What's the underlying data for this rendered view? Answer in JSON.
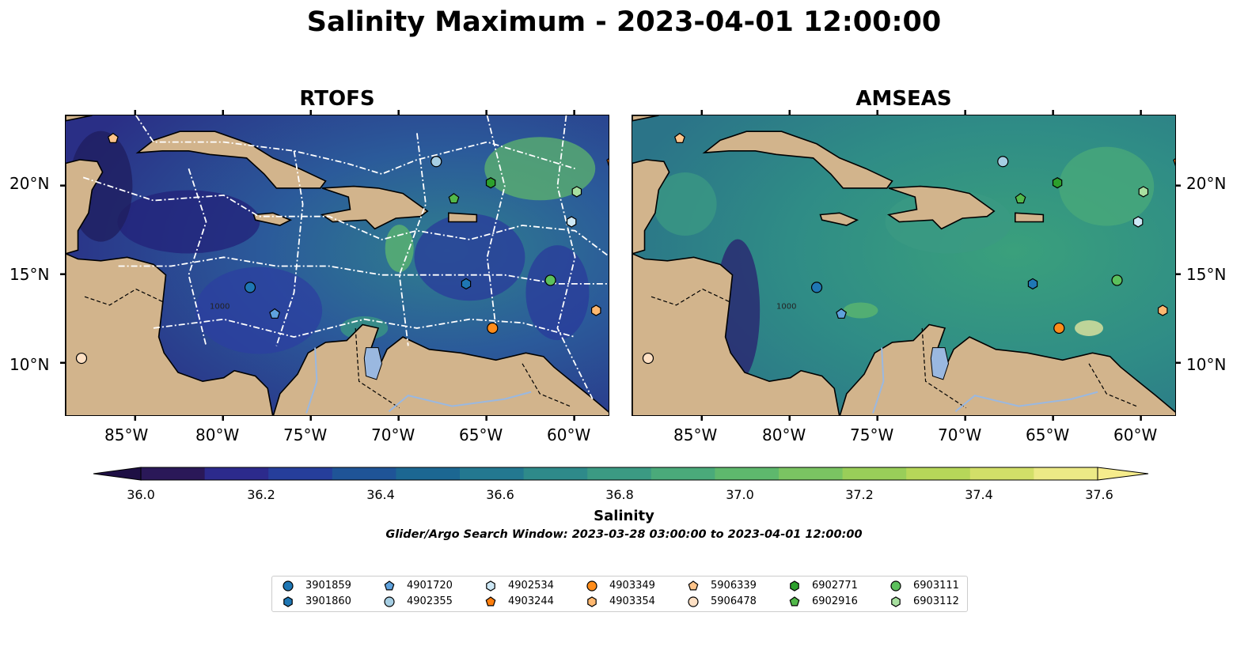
{
  "title": "Salinity Maximum - 2023-04-01 12:00:00",
  "panels": [
    {
      "title": "RTOFS"
    },
    {
      "title": "AMSEAS"
    }
  ],
  "axes": {
    "lon_ticks": [
      "85°W",
      "80°W",
      "75°W",
      "70°W",
      "65°W",
      "60°W"
    ],
    "lat_ticks": [
      "20°N",
      "15°N",
      "10°N"
    ],
    "lon_range": [
      -89,
      -58
    ],
    "lat_range": [
      7,
      24
    ]
  },
  "contour_label": "1000",
  "colorbar": {
    "label": "Salinity",
    "ticks": [
      "36.0",
      "36.2",
      "36.4",
      "36.6",
      "36.8",
      "37.0",
      "37.2",
      "37.4",
      "37.6"
    ],
    "range": [
      36.0,
      37.6
    ],
    "colors": [
      "#2a1858",
      "#2c2a8c",
      "#263e9b",
      "#1f5497",
      "#1c6792",
      "#237890",
      "#2e8a8a",
      "#3b9a83",
      "#4aaa7a",
      "#5eb86d",
      "#7ac462",
      "#99ce59",
      "#b6d759",
      "#d2df68",
      "#ecea86"
    ]
  },
  "search_window": "Glider/Argo Search Window: 2023-03-28 03:00:00 to 2023-04-01 12:00:00",
  "colors": {
    "land": "#d2b48c",
    "lake": "#9ab8e0",
    "ocean_rtofs": "#2f3f98",
    "ocean_amseas": "#2f8a85"
  },
  "floats": [
    {
      "id": "3901859",
      "marker": "circle",
      "color": "#1f77b4",
      "lon": -78.5,
      "lat": 14.3
    },
    {
      "id": "3901860",
      "marker": "hexagon",
      "color": "#1f77b4",
      "lon": -66.2,
      "lat": 14.5
    },
    {
      "id": "4901720",
      "marker": "pentagon",
      "color": "#5fa2dd",
      "lon": -77.1,
      "lat": 12.8
    },
    {
      "id": "4902355",
      "marker": "circle",
      "color": "#a6cee3",
      "lon": -67.9,
      "lat": 21.4
    },
    {
      "id": "4902534",
      "marker": "hexagon",
      "color": "#cde8f6",
      "lon": -60.2,
      "lat": 18.0
    },
    {
      "id": "4903244",
      "marker": "pentagon",
      "color": "#ff7f0e",
      "lon": -57.9,
      "lat": 21.4
    },
    {
      "id": "4903349",
      "marker": "circle",
      "color": "#ff8c1a",
      "lon": -64.7,
      "lat": 12.0
    },
    {
      "id": "4903354",
      "marker": "hexagon",
      "color": "#ffb870",
      "lon": -58.8,
      "lat": 13.0
    },
    {
      "id": "5906339",
      "marker": "pentagon",
      "color": "#ffc48a",
      "lon": -86.3,
      "lat": 22.7
    },
    {
      "id": "5906478",
      "marker": "circle",
      "color": "#fee0c4",
      "lon": -88.1,
      "lat": 10.3
    },
    {
      "id": "6902771",
      "marker": "hexagon",
      "color": "#2ca02c",
      "lon": -64.8,
      "lat": 20.2
    },
    {
      "id": "6902916",
      "marker": "pentagon",
      "color": "#52b84a",
      "lon": -66.9,
      "lat": 19.3
    },
    {
      "id": "6903111",
      "marker": "circle",
      "color": "#5cc05c",
      "lon": -61.4,
      "lat": 14.7
    },
    {
      "id": "6903112",
      "marker": "hexagon",
      "color": "#a8e0a0",
      "lon": -59.9,
      "lat": 19.7
    }
  ]
}
